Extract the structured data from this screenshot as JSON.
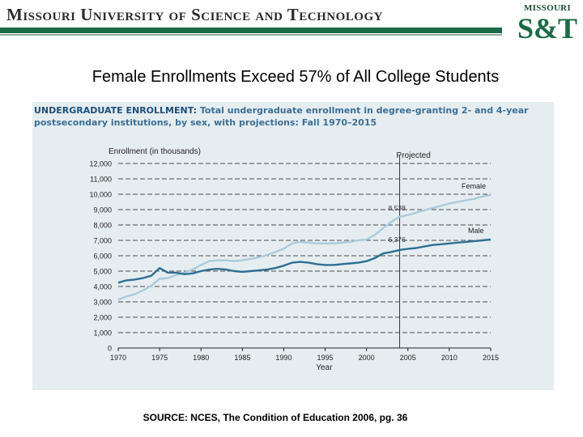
{
  "header": {
    "university_name": "Missouri University of Science and Technology",
    "logo_top": "MISSOURI",
    "logo_main": "S&T"
  },
  "slide_title": "Female Enrollments Exceed 57% of All College Students",
  "chart_heading": {
    "lead": "UNDERGRADUATE ENROLLMENT:",
    "rest": "Total undergraduate enrollment in degree-granting 2- and 4-year postsecondary institutions, by sex, with projections: Fall 1970–2015"
  },
  "source": "SOURCE: NCES, The Condition of Education 2006, pg. 36",
  "chart_data": {
    "type": "line",
    "ylabel": "Enrollment (in thousands)",
    "xlabel": "Year",
    "ylim": [
      0,
      12000
    ],
    "xlim": [
      1970,
      2015
    ],
    "yticks": [
      0,
      1000,
      2000,
      3000,
      4000,
      5000,
      6000,
      7000,
      8000,
      9000,
      10000,
      11000,
      12000
    ],
    "ytick_labels": [
      "0",
      "1,000",
      "2,000",
      "3,000",
      "4,000",
      "5,000",
      "6,000",
      "7,000",
      "8,000",
      "9,000",
      "10,000",
      "11,000",
      "12,000"
    ],
    "xticks": [
      1970,
      1975,
      1980,
      1985,
      1990,
      1995,
      2000,
      2005,
      2010,
      2015
    ],
    "grid": true,
    "projection_start": 2004,
    "projection_label": "Projected",
    "annotations": [
      {
        "text": "8,538",
        "x": 2004,
        "y": 8538
      },
      {
        "text": "6,376",
        "x": 2004,
        "y": 6376
      }
    ],
    "colors": {
      "female": "#a9cbdc",
      "male": "#2d6f93",
      "grid": "#4b4b4b",
      "projection_line": "#333333"
    },
    "series": [
      {
        "name": "Female",
        "x": [
          1970,
          1971,
          1972,
          1973,
          1974,
          1975,
          1976,
          1977,
          1978,
          1979,
          1980,
          1981,
          1982,
          1983,
          1984,
          1985,
          1986,
          1987,
          1988,
          1989,
          1990,
          1991,
          1992,
          1993,
          1994,
          1995,
          1996,
          1997,
          1998,
          1999,
          2000,
          2001,
          2002,
          2003,
          2004,
          2005,
          2006,
          2007,
          2008,
          2009,
          2010,
          2011,
          2012,
          2013,
          2014,
          2015
        ],
        "values": [
          3150,
          3350,
          3500,
          3750,
          4050,
          4500,
          4550,
          4750,
          4900,
          5100,
          5400,
          5650,
          5700,
          5700,
          5650,
          5700,
          5800,
          5900,
          6050,
          6250,
          6450,
          6800,
          6900,
          6850,
          6800,
          6800,
          6800,
          6850,
          6900,
          7000,
          7050,
          7350,
          7800,
          8200,
          8538,
          8650,
          8800,
          8950,
          9100,
          9250,
          9400,
          9500,
          9600,
          9700,
          9850,
          9950
        ]
      },
      {
        "name": "Male",
        "x": [
          1970,
          1971,
          1972,
          1973,
          1974,
          1975,
          1976,
          1977,
          1978,
          1979,
          1980,
          1981,
          1982,
          1983,
          1984,
          1985,
          1986,
          1987,
          1988,
          1989,
          1990,
          1991,
          1992,
          1993,
          1994,
          1995,
          1996,
          1997,
          1998,
          1999,
          2000,
          2001,
          2002,
          2003,
          2004,
          2005,
          2006,
          2007,
          2008,
          2009,
          2010,
          2011,
          2012,
          2013,
          2014,
          2015
        ],
        "values": [
          4250,
          4400,
          4450,
          4550,
          4700,
          5200,
          4900,
          4900,
          4800,
          4850,
          5000,
          5100,
          5150,
          5100,
          5000,
          4950,
          5000,
          5050,
          5100,
          5200,
          5350,
          5550,
          5600,
          5550,
          5450,
          5400,
          5400,
          5450,
          5500,
          5550,
          5650,
          5850,
          6150,
          6250,
          6376,
          6450,
          6500,
          6600,
          6700,
          6750,
          6800,
          6850,
          6900,
          6950,
          7000,
          7050
        ]
      }
    ]
  }
}
